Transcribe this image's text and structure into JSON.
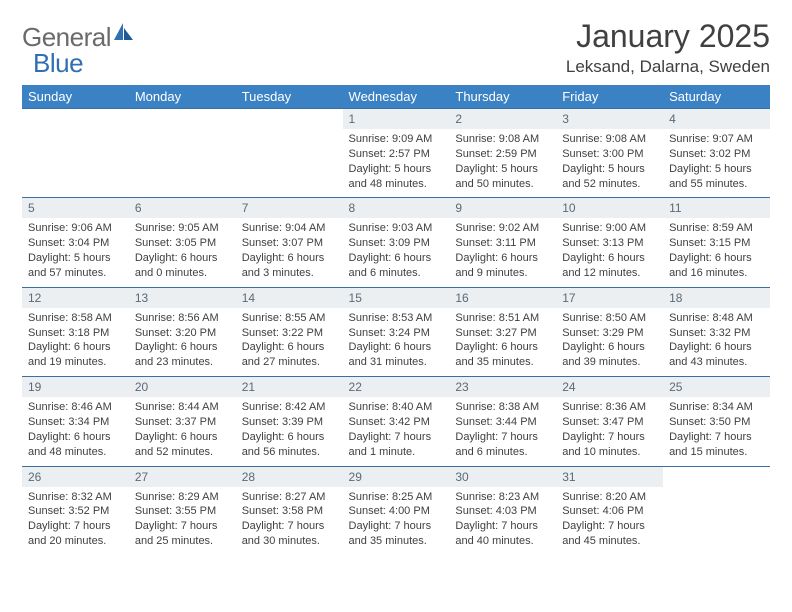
{
  "logo": {
    "part1": "General",
    "part2": "Blue"
  },
  "title": "January 2025",
  "location": "Leksand, Dalarna, Sweden",
  "colors": {
    "header_bg": "#3b82c4",
    "header_text": "#ffffff",
    "daynum_bg": "#eceff1",
    "daynum_text": "#5a6a78",
    "body_text": "#404040",
    "rule": "#3b6fa3",
    "logo_gray": "#6a6a6a",
    "logo_blue": "#2f6fb2"
  },
  "typography": {
    "title_fontsize": 32,
    "location_fontsize": 17,
    "dayheader_fontsize": 13,
    "daynum_fontsize": 12,
    "body_fontsize": 11
  },
  "day_headers": [
    "Sunday",
    "Monday",
    "Tuesday",
    "Wednesday",
    "Thursday",
    "Friday",
    "Saturday"
  ],
  "weeks": [
    [
      {
        "num": "",
        "lines": []
      },
      {
        "num": "",
        "lines": []
      },
      {
        "num": "",
        "lines": []
      },
      {
        "num": "1",
        "lines": [
          "Sunrise: 9:09 AM",
          "Sunset: 2:57 PM",
          "Daylight: 5 hours",
          "and 48 minutes."
        ]
      },
      {
        "num": "2",
        "lines": [
          "Sunrise: 9:08 AM",
          "Sunset: 2:59 PM",
          "Daylight: 5 hours",
          "and 50 minutes."
        ]
      },
      {
        "num": "3",
        "lines": [
          "Sunrise: 9:08 AM",
          "Sunset: 3:00 PM",
          "Daylight: 5 hours",
          "and 52 minutes."
        ]
      },
      {
        "num": "4",
        "lines": [
          "Sunrise: 9:07 AM",
          "Sunset: 3:02 PM",
          "Daylight: 5 hours",
          "and 55 minutes."
        ]
      }
    ],
    [
      {
        "num": "5",
        "lines": [
          "Sunrise: 9:06 AM",
          "Sunset: 3:04 PM",
          "Daylight: 5 hours",
          "and 57 minutes."
        ]
      },
      {
        "num": "6",
        "lines": [
          "Sunrise: 9:05 AM",
          "Sunset: 3:05 PM",
          "Daylight: 6 hours",
          "and 0 minutes."
        ]
      },
      {
        "num": "7",
        "lines": [
          "Sunrise: 9:04 AM",
          "Sunset: 3:07 PM",
          "Daylight: 6 hours",
          "and 3 minutes."
        ]
      },
      {
        "num": "8",
        "lines": [
          "Sunrise: 9:03 AM",
          "Sunset: 3:09 PM",
          "Daylight: 6 hours",
          "and 6 minutes."
        ]
      },
      {
        "num": "9",
        "lines": [
          "Sunrise: 9:02 AM",
          "Sunset: 3:11 PM",
          "Daylight: 6 hours",
          "and 9 minutes."
        ]
      },
      {
        "num": "10",
        "lines": [
          "Sunrise: 9:00 AM",
          "Sunset: 3:13 PM",
          "Daylight: 6 hours",
          "and 12 minutes."
        ]
      },
      {
        "num": "11",
        "lines": [
          "Sunrise: 8:59 AM",
          "Sunset: 3:15 PM",
          "Daylight: 6 hours",
          "and 16 minutes."
        ]
      }
    ],
    [
      {
        "num": "12",
        "lines": [
          "Sunrise: 8:58 AM",
          "Sunset: 3:18 PM",
          "Daylight: 6 hours",
          "and 19 minutes."
        ]
      },
      {
        "num": "13",
        "lines": [
          "Sunrise: 8:56 AM",
          "Sunset: 3:20 PM",
          "Daylight: 6 hours",
          "and 23 minutes."
        ]
      },
      {
        "num": "14",
        "lines": [
          "Sunrise: 8:55 AM",
          "Sunset: 3:22 PM",
          "Daylight: 6 hours",
          "and 27 minutes."
        ]
      },
      {
        "num": "15",
        "lines": [
          "Sunrise: 8:53 AM",
          "Sunset: 3:24 PM",
          "Daylight: 6 hours",
          "and 31 minutes."
        ]
      },
      {
        "num": "16",
        "lines": [
          "Sunrise: 8:51 AM",
          "Sunset: 3:27 PM",
          "Daylight: 6 hours",
          "and 35 minutes."
        ]
      },
      {
        "num": "17",
        "lines": [
          "Sunrise: 8:50 AM",
          "Sunset: 3:29 PM",
          "Daylight: 6 hours",
          "and 39 minutes."
        ]
      },
      {
        "num": "18",
        "lines": [
          "Sunrise: 8:48 AM",
          "Sunset: 3:32 PM",
          "Daylight: 6 hours",
          "and 43 minutes."
        ]
      }
    ],
    [
      {
        "num": "19",
        "lines": [
          "Sunrise: 8:46 AM",
          "Sunset: 3:34 PM",
          "Daylight: 6 hours",
          "and 48 minutes."
        ]
      },
      {
        "num": "20",
        "lines": [
          "Sunrise: 8:44 AM",
          "Sunset: 3:37 PM",
          "Daylight: 6 hours",
          "and 52 minutes."
        ]
      },
      {
        "num": "21",
        "lines": [
          "Sunrise: 8:42 AM",
          "Sunset: 3:39 PM",
          "Daylight: 6 hours",
          "and 56 minutes."
        ]
      },
      {
        "num": "22",
        "lines": [
          "Sunrise: 8:40 AM",
          "Sunset: 3:42 PM",
          "Daylight: 7 hours",
          "and 1 minute."
        ]
      },
      {
        "num": "23",
        "lines": [
          "Sunrise: 8:38 AM",
          "Sunset: 3:44 PM",
          "Daylight: 7 hours",
          "and 6 minutes."
        ]
      },
      {
        "num": "24",
        "lines": [
          "Sunrise: 8:36 AM",
          "Sunset: 3:47 PM",
          "Daylight: 7 hours",
          "and 10 minutes."
        ]
      },
      {
        "num": "25",
        "lines": [
          "Sunrise: 8:34 AM",
          "Sunset: 3:50 PM",
          "Daylight: 7 hours",
          "and 15 minutes."
        ]
      }
    ],
    [
      {
        "num": "26",
        "lines": [
          "Sunrise: 8:32 AM",
          "Sunset: 3:52 PM",
          "Daylight: 7 hours",
          "and 20 minutes."
        ]
      },
      {
        "num": "27",
        "lines": [
          "Sunrise: 8:29 AM",
          "Sunset: 3:55 PM",
          "Daylight: 7 hours",
          "and 25 minutes."
        ]
      },
      {
        "num": "28",
        "lines": [
          "Sunrise: 8:27 AM",
          "Sunset: 3:58 PM",
          "Daylight: 7 hours",
          "and 30 minutes."
        ]
      },
      {
        "num": "29",
        "lines": [
          "Sunrise: 8:25 AM",
          "Sunset: 4:00 PM",
          "Daylight: 7 hours",
          "and 35 minutes."
        ]
      },
      {
        "num": "30",
        "lines": [
          "Sunrise: 8:23 AM",
          "Sunset: 4:03 PM",
          "Daylight: 7 hours",
          "and 40 minutes."
        ]
      },
      {
        "num": "31",
        "lines": [
          "Sunrise: 8:20 AM",
          "Sunset: 4:06 PM",
          "Daylight: 7 hours",
          "and 45 minutes."
        ]
      },
      {
        "num": "",
        "lines": []
      }
    ]
  ]
}
